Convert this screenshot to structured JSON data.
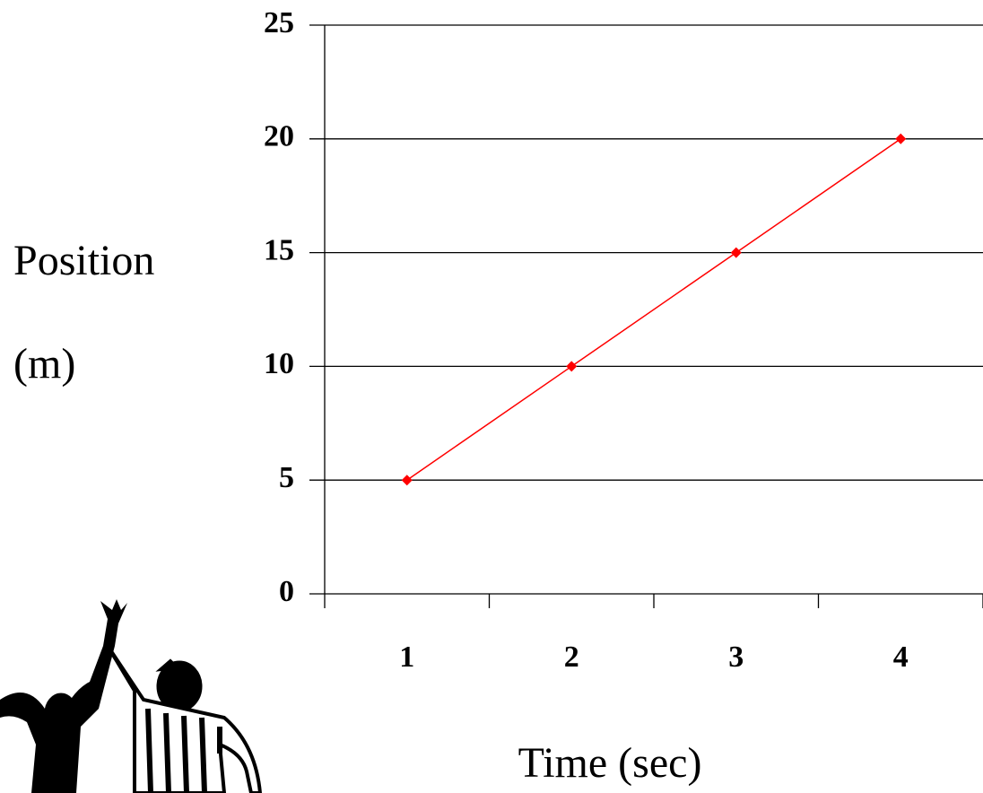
{
  "chart_data": {
    "type": "line",
    "x_label": "Time (sec)",
    "y_label_lines": [
      "Position",
      "(m)"
    ],
    "categories": [
      "1",
      "2",
      "3",
      "4"
    ],
    "series": [
      {
        "color": "#ff0000",
        "values": [
          5,
          10,
          15,
          20
        ]
      }
    ],
    "ylim": [
      0,
      25
    ],
    "yticks": [
      0,
      5,
      10,
      15,
      20,
      25
    ],
    "grid": true
  }
}
